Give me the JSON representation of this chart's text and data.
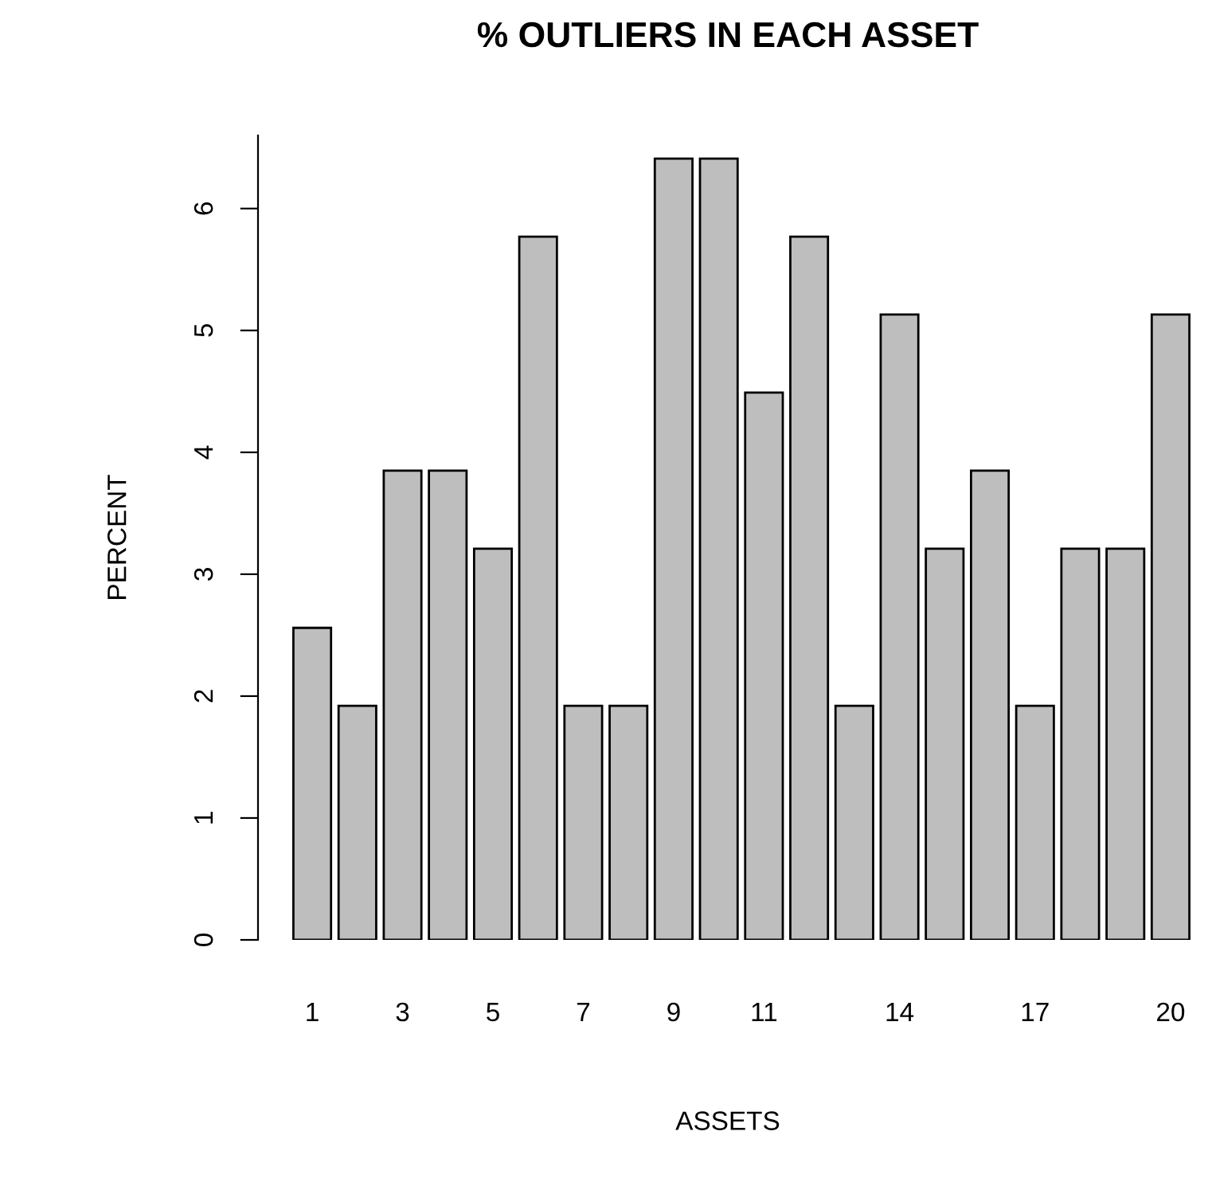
{
  "chart_data": {
    "type": "bar",
    "title": "% OUTLIERS IN EACH ASSET",
    "xlabel": "ASSETS",
    "ylabel": "PERCENT",
    "categories": [
      "1",
      null,
      "3",
      null,
      "5",
      null,
      "7",
      null,
      "9",
      null,
      "11",
      null,
      null,
      "14",
      null,
      null,
      "17",
      null,
      null,
      "20"
    ],
    "values": [
      2.56,
      1.92,
      3.85,
      3.85,
      3.21,
      5.77,
      1.92,
      1.92,
      6.41,
      6.41,
      4.49,
      5.77,
      1.92,
      5.13,
      3.21,
      3.85,
      1.92,
      3.21,
      3.21,
      5.13
    ],
    "color": "#bebebe",
    "ylim": [
      0,
      6.6
    ],
    "yticks": [
      0,
      1,
      2,
      3,
      4,
      5,
      6
    ],
    "grid": false
  }
}
